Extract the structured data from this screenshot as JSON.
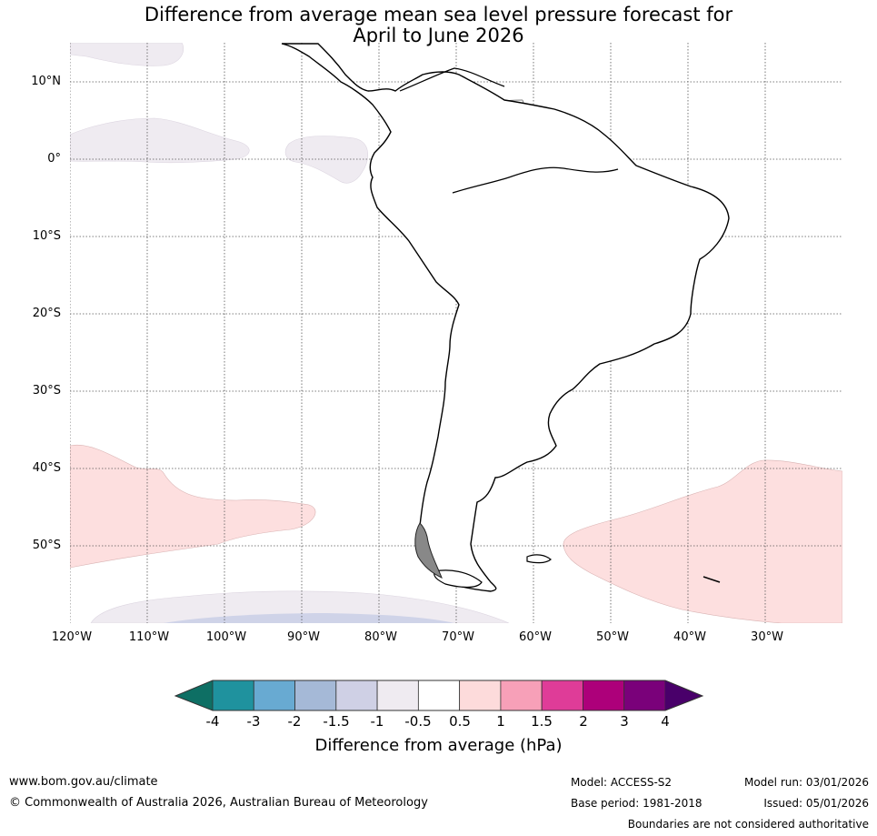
{
  "title_line1": "Difference from average mean sea level pressure forecast for",
  "title_line2": "April to June 2026",
  "lat_labels": [
    "10°N",
    "0°",
    "10°S",
    "20°S",
    "30°S",
    "40°S",
    "50°S"
  ],
  "lon_labels": [
    "120°W",
    "110°W",
    "100°W",
    "90°W",
    "80°W",
    "70°W",
    "60°W",
    "50°W",
    "40°W",
    "30°W"
  ],
  "colorbar": {
    "title": "Difference from average (hPa)",
    "tick_labels": [
      "-4",
      "-3",
      "-2",
      "-1.5",
      "-1",
      "-0.5",
      "0.5",
      "1",
      "1.5",
      "2",
      "3",
      "4"
    ],
    "colors": [
      "#0e6f64",
      "#1f929e",
      "#68aad2",
      "#a5b9d7",
      "#cfd0e5",
      "#efebf1",
      "#ffffff",
      "#fddbdb",
      "#f7a0b8",
      "#df3c98",
      "#ad007a",
      "#7a017a",
      "#49006a"
    ]
  },
  "anomaly_colors": {
    "positive_light": "#fddfdf",
    "negative_light": "#efebf1",
    "negative_medium": "#cfd3e8"
  },
  "footer": {
    "website": "www.bom.gov.au/climate",
    "copyright": "© Commonwealth of Australia 2026, Australian Bureau of Meteorology",
    "model": "Model: ACCESS-S2",
    "base_period": "Base period: 1981-2018",
    "model_run": "Model run: 03/01/2026",
    "issued": "Issued: 05/01/2026",
    "disclaimer": "Boundaries are not considered authoritative"
  }
}
